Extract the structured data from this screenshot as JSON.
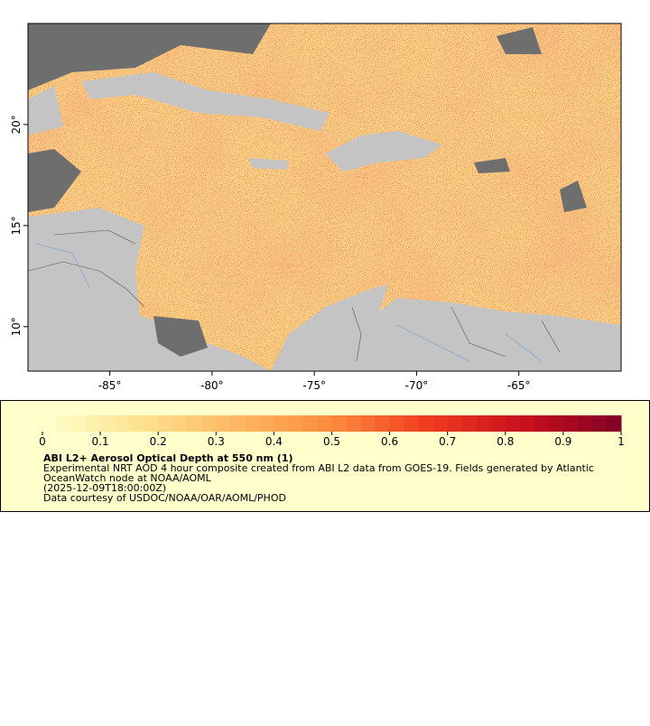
{
  "map": {
    "xlim": [
      -89,
      -60
    ],
    "ylim": [
      7.8,
      25
    ],
    "xticks": [
      {
        "value": -85,
        "label": "-85°"
      },
      {
        "value": -80,
        "label": "-80°"
      },
      {
        "value": -75,
        "label": "-75°"
      },
      {
        "value": -70,
        "label": "-70°"
      },
      {
        "value": -65,
        "label": "-65°"
      }
    ],
    "yticks": [
      {
        "value": 10,
        "label": "10°"
      },
      {
        "value": 15,
        "label": "15°"
      },
      {
        "value": 20,
        "label": "20°"
      }
    ]
  },
  "legend": {
    "colorbar": {
      "lim": [
        0,
        1
      ],
      "ticks": [
        0,
        0.1,
        0.2,
        0.3,
        0.4,
        0.5,
        0.6,
        0.7,
        0.8,
        0.9,
        1
      ],
      "colors": [
        "#ffffcc",
        "#fee391",
        "#fdb863",
        "#fb8c3c",
        "#f03b20",
        "#c8101c",
        "#800026"
      ]
    },
    "title": "ABI L2+ Aerosol Optical Depth at 550 nm (1)",
    "lines": [
      "Experimental NRT AOD 4 hour composite created from ABI L2 data from GOES-19. Fields generated by Atlantic",
      "OceanWatch node at NOAA/AOML",
      "(2025-12-09T18:00:00Z)",
      "Data courtesy of USDOC/NOAA/OAR/AOML/PHOD"
    ]
  }
}
